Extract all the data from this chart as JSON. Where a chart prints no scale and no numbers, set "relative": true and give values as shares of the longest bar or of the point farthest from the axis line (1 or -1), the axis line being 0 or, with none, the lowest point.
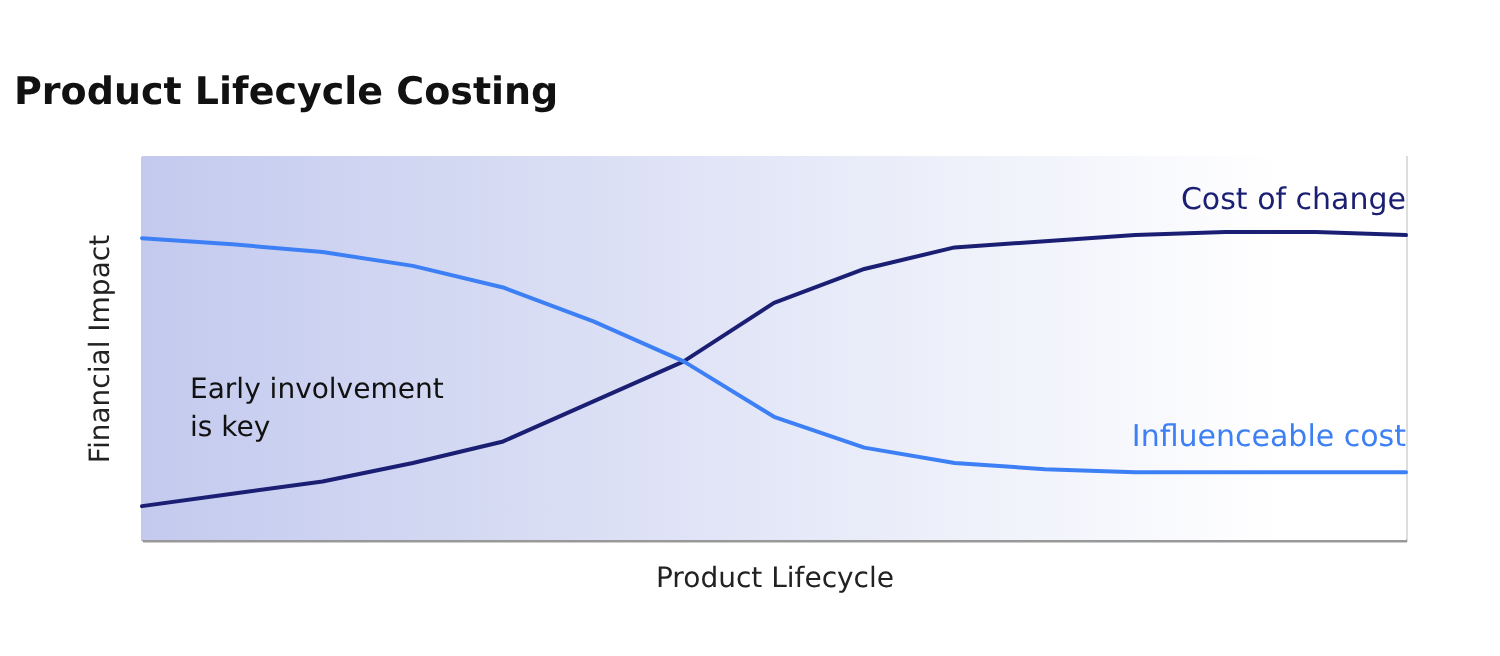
{
  "chart_data": {
    "type": "line",
    "title": "Product Lifecycle Costing",
    "xlabel": "Product Lifecycle",
    "ylabel": "Financial Impact",
    "relative": true,
    "marker": "none",
    "line_style": "solid",
    "categories": [
      null,
      null,
      null,
      null,
      null,
      null,
      null,
      null,
      null,
      null,
      null,
      null,
      null,
      null,
      null
    ],
    "series": [
      {
        "name": "Cost of change",
        "color": "#1b1f73",
        "values": [
          0.11,
          0.15,
          0.19,
          0.25,
          0.32,
          0.45,
          0.58,
          0.77,
          0.88,
          0.95,
          0.97,
          0.99,
          1.0,
          1.0,
          0.99
        ]
      },
      {
        "name": "Influenceable cost",
        "color": "#3d7ff5",
        "values": [
          0.98,
          0.96,
          0.935,
          0.89,
          0.82,
          0.71,
          0.58,
          0.4,
          0.3,
          0.25,
          0.23,
          0.22,
          0.22,
          0.22,
          0.22
        ]
      }
    ],
    "annotations": [
      "Early involvement\nis key"
    ]
  }
}
